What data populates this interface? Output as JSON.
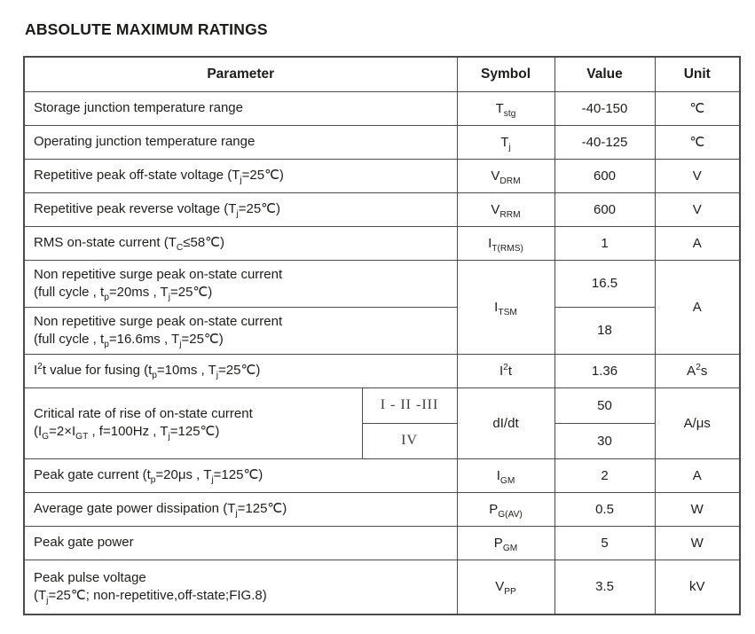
{
  "title": "ABSOLUTE MAXIMUM RATINGS",
  "colors": {
    "background": "#ffffff",
    "text": "#1d1d1b",
    "border": "#4b4b4b"
  },
  "table": {
    "header": {
      "parameter": "Parameter",
      "symbol": "Symbol",
      "value": "Value",
      "unit": "Unit"
    },
    "rows_top": [
      {
        "param": "Storage junction temperature range",
        "symbol": "T<sub>stg</sub>",
        "value": "-40-150",
        "unit": "℃"
      },
      {
        "param": "Operating junction temperature range",
        "symbol": "T<sub>j</sub>",
        "value": "-40-125",
        "unit": "℃"
      },
      {
        "param": "Repetitive peak off-state voltage (T<sub>j</sub>=25℃)",
        "symbol": "V<sub>DRM</sub>",
        "value": "600",
        "unit": "V"
      },
      {
        "param": "Repetitive peak reverse voltage (T<sub>j</sub>=25℃)",
        "symbol": "V<sub>RRM</sub>",
        "value": "600",
        "unit": "V"
      },
      {
        "param": "RMS on-state current (T<sub>C</sub>≤58℃)",
        "symbol": "I<sub>T(RMS)</sub>",
        "value": "1",
        "unit": "A"
      }
    ],
    "surge": {
      "symbol": "I<sub>TSM</sub>",
      "unit": "A",
      "rows": [
        {
          "line1": "Non repetitive surge peak on-state current",
          "line2": "(full cycle , t<sub>p</sub>=20ms , T<sub>j</sub>=25℃)",
          "value": "16.5"
        },
        {
          "line1": "Non repetitive surge peak on-state current",
          "line2": "(full cycle , t<sub>p</sub>=16.6ms , T<sub>j</sub>=25℃)",
          "value": "18"
        }
      ]
    },
    "i2t": {
      "param": "I<sup>2</sup>t value for fusing (t<sub>p</sub>=10ms , T<sub>j</sub>=25℃)",
      "symbol": "I<sup>2</sup>t",
      "value": "1.36",
      "unit": "A<sup>2</sup>s"
    },
    "didt": {
      "line1": "Critical rate of rise of on-state current",
      "line2": "(I<sub>G</sub>=2×I<sub>GT</sub> , f=100Hz , T<sub>j</sub>=125℃)",
      "classes": [
        "I - II -III",
        "IV"
      ],
      "symbol": "dI/dt",
      "values": [
        "50",
        "30"
      ],
      "unit": "A/μs"
    },
    "rows_bottom": [
      {
        "param": "Peak gate current (t<sub>p</sub>=20μs , T<sub>j</sub>=125℃)",
        "symbol": "I<sub>GM</sub>",
        "value": "2",
        "unit": "A"
      },
      {
        "param": "Average gate power dissipation (T<sub>j</sub>=125℃)",
        "symbol": "P<sub>G(AV)</sub>",
        "value": "0.5",
        "unit": "W"
      },
      {
        "param": "Peak gate power",
        "symbol": "P<sub>GM</sub>",
        "value": "5",
        "unit": "W"
      }
    ],
    "vpp": {
      "line1": "Peak pulse voltage",
      "line2": "(T<sub>j</sub>=25℃; non-repetitive,off-state;FIG.8)",
      "symbol": "V<sub>PP</sub>",
      "value": "3.5",
      "unit": "kV"
    }
  }
}
